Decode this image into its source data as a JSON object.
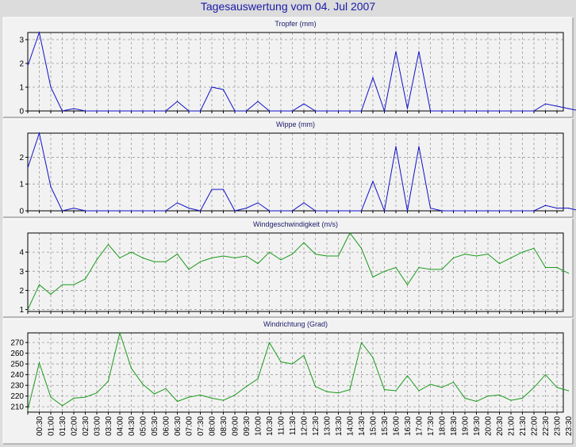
{
  "title": "Tagesauswertung vom 04. Jul 2007",
  "colors": {
    "blue": "#1010c8",
    "green": "#1a9a1a",
    "grid": "#9a9a9a",
    "panel_bg": "#f2f2f2"
  },
  "x_labels": [
    "00:30",
    "01:00",
    "01:30",
    "02:00",
    "02:30",
    "03:00",
    "03:30",
    "04:00",
    "04:30",
    "05:00",
    "05:30",
    "06:00",
    "06:30",
    "07:00",
    "07:30",
    "08:00",
    "08:30",
    "09:00",
    "09:30",
    "10:00",
    "10:30",
    "11:00",
    "11:30",
    "12:00",
    "12:30",
    "13:00",
    "13:30",
    "14:00",
    "14:30",
    "15:00",
    "15:30",
    "16:00",
    "16:30",
    "17:00",
    "17:30",
    "18:00",
    "18:30",
    "19:00",
    "19:30",
    "20:00",
    "20:30",
    "21:00",
    "21:30",
    "22:00",
    "22:30",
    "23:00",
    "23:30"
  ],
  "chart_data": [
    {
      "type": "line",
      "title": "Tropfer (mm)",
      "color": "blue",
      "ylim": [
        0,
        3.3
      ],
      "yticks": [
        0,
        1,
        2,
        3
      ],
      "values": [
        1.9,
        3.3,
        1.0,
        0,
        0.1,
        0,
        0,
        0,
        0,
        0,
        0,
        0,
        0,
        0.4,
        0,
        0,
        1.0,
        0.9,
        0,
        0,
        0.4,
        0,
        0,
        0,
        0.3,
        0,
        0,
        0,
        0,
        0,
        1.4,
        0,
        2.5,
        0.1,
        2.5,
        0,
        0,
        0,
        0,
        0,
        0,
        0,
        0,
        0,
        0,
        0.3,
        0.2,
        0.1,
        0
      ]
    },
    {
      "type": "line",
      "title": "Wippe (mm)",
      "color": "blue",
      "ylim": [
        0,
        2.9
      ],
      "yticks": [
        0,
        1,
        2
      ],
      "values": [
        1.6,
        2.9,
        0.9,
        0,
        0.1,
        0,
        0,
        0,
        0,
        0,
        0,
        0,
        0,
        0.3,
        0.1,
        0,
        0.8,
        0.8,
        0,
        0.1,
        0.3,
        0,
        0,
        0,
        0.3,
        0,
        0,
        0,
        0,
        0,
        1.1,
        0,
        2.4,
        0,
        2.4,
        0.1,
        0,
        0,
        0,
        0,
        0,
        0,
        0,
        0,
        0,
        0.2,
        0.1,
        0.1,
        0
      ]
    },
    {
      "type": "line",
      "title": "Windgeschwindigkeit (m/s)",
      "color": "green",
      "ylim": [
        0.9,
        5
      ],
      "yticks": [
        1,
        2,
        3,
        4
      ],
      "values": [
        1.0,
        2.3,
        1.8,
        2.3,
        2.3,
        2.6,
        3.6,
        4.4,
        3.7,
        4.0,
        3.7,
        3.5,
        3.5,
        3.9,
        3.1,
        3.5,
        3.7,
        3.8,
        3.7,
        3.8,
        3.4,
        4.0,
        3.6,
        3.9,
        4.5,
        3.9,
        3.8,
        3.8,
        5.0,
        4.2,
        2.7,
        3.0,
        3.2,
        2.3,
        3.2,
        3.1,
        3.1,
        3.7,
        3.9,
        3.8,
        3.9,
        3.4,
        3.7,
        4.0,
        4.2,
        3.2,
        3.2,
        2.9
      ]
    },
    {
      "type": "line",
      "title": "Windrichtung (Grad)",
      "color": "green",
      "ylim": [
        205,
        279
      ],
      "yticks": [
        210,
        220,
        230,
        240,
        250,
        260,
        270
      ],
      "values": [
        207,
        251,
        219,
        211,
        218,
        219,
        223,
        234,
        279,
        246,
        231,
        222,
        227,
        215,
        219,
        221,
        218,
        216,
        221,
        229,
        236,
        270,
        252,
        250,
        258,
        229,
        224,
        223,
        226,
        270,
        256,
        226,
        225,
        239,
        225,
        231,
        228,
        233,
        218,
        215,
        220,
        221,
        216,
        218,
        228,
        240,
        228,
        225
      ]
    }
  ]
}
